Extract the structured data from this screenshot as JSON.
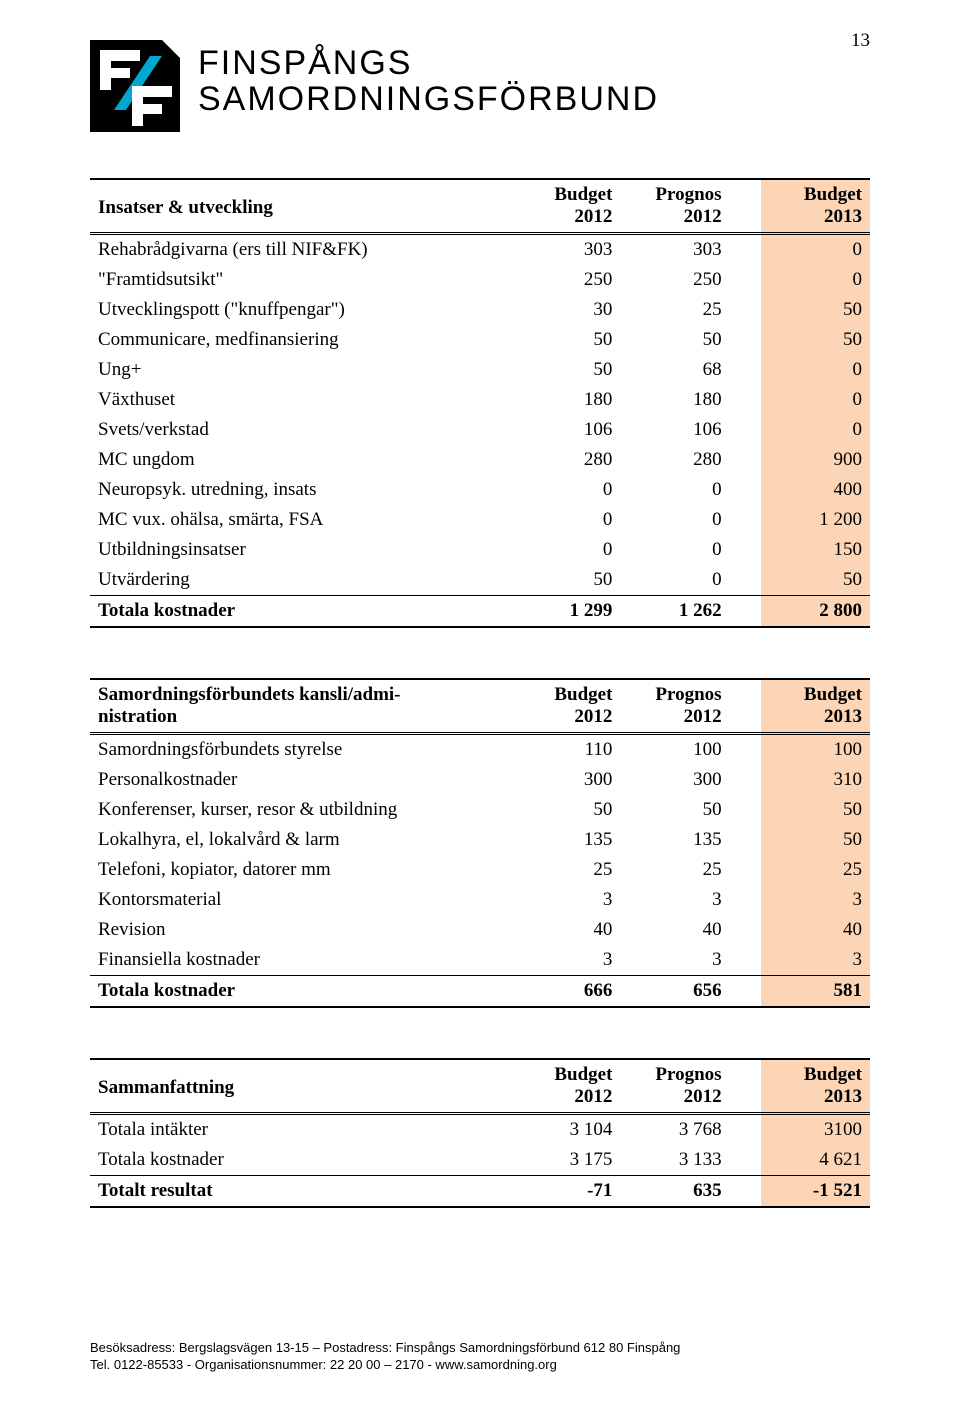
{
  "page_number": "13",
  "org": {
    "line1": "FINSPÅNGS",
    "line2": "SAMORDNINGSFÖRBUND"
  },
  "logo": {
    "bg": "#000000",
    "accent": "#00a7cf"
  },
  "columns": {
    "budget_2012_top": "Budget",
    "budget_2012_bot": "2012",
    "prognos_2012_top": "Prognos",
    "prognos_2012_bot": "2012",
    "budget_2013_top": "Budget",
    "budget_2013_bot": "2013"
  },
  "table1": {
    "title": "Insatser & utveckling",
    "rows": [
      {
        "label": "Rehabrådgivarna (ers till NIF&FK)",
        "b12": "303",
        "p12": "303",
        "b13": "0"
      },
      {
        "label": "\"Framtidsutsikt\"",
        "b12": "250",
        "p12": "250",
        "b13": "0"
      },
      {
        "label": "Utvecklingspott (\"knuffpengar\")",
        "b12": "30",
        "p12": "25",
        "b13": "50"
      },
      {
        "label": "Communicare, medfinansiering",
        "b12": "50",
        "p12": "50",
        "b13": "50"
      },
      {
        "label": "Ung+",
        "b12": "50",
        "p12": "68",
        "b13": "0"
      },
      {
        "label": "Växthuset",
        "b12": "180",
        "p12": "180",
        "b13": "0"
      },
      {
        "label": "Svets/verkstad",
        "b12": "106",
        "p12": "106",
        "b13": "0"
      },
      {
        "label": "MC ungdom",
        "b12": "280",
        "p12": "280",
        "b13": "900"
      },
      {
        "label": "Neuropsyk. utredning, insats",
        "b12": "0",
        "p12": "0",
        "b13": "400"
      },
      {
        "label": "MC vux. ohälsa, smärta, FSA",
        "b12": "0",
        "p12": "0",
        "b13": "1 200"
      },
      {
        "label": "Utbildningsinsatser",
        "b12": "0",
        "p12": "0",
        "b13": "150"
      },
      {
        "label": "Utvärdering",
        "b12": "50",
        "p12": "0",
        "b13": "50"
      }
    ],
    "total": {
      "label": "Totala kostnader",
      "b12": "1 299",
      "p12": "1 262",
      "b13": "2 800"
    }
  },
  "table2": {
    "title_l1": "Samordningsförbundets kansli/admi-",
    "title_l2": "nistration",
    "rows": [
      {
        "label": "Samordningsförbundets styrelse",
        "b12": "110",
        "p12": "100",
        "b13": "100"
      },
      {
        "label": "Personalkostnader",
        "b12": "300",
        "p12": "300",
        "b13": "310"
      },
      {
        "label": "Konferenser, kurser, resor & utbildning",
        "b12": "50",
        "p12": "50",
        "b13": "50"
      },
      {
        "label": "Lokalhyra, el, lokalvård & larm",
        "b12": "135",
        "p12": "135",
        "b13": "50"
      },
      {
        "label": "Telefoni, kopiator, datorer mm",
        "b12": "25",
        "p12": "25",
        "b13": "25"
      },
      {
        "label": "Kontorsmaterial",
        "b12": "3",
        "p12": "3",
        "b13": "3"
      },
      {
        "label": "Revision",
        "b12": "40",
        "p12": "40",
        "b13": "40"
      },
      {
        "label": "Finansiella kostnader",
        "b12": "3",
        "p12": "3",
        "b13": "3"
      }
    ],
    "total": {
      "label": "Totala kostnader",
      "b12": "666",
      "p12": "656",
      "b13": "581"
    }
  },
  "table3": {
    "title": "Sammanfattning",
    "rows": [
      {
        "label": "Totala intäkter",
        "b12": "3 104",
        "p12": "3 768",
        "b13": "3100"
      },
      {
        "label": "Totala kostnader",
        "b12": "3 175",
        "p12": "3 133",
        "b13": "4 621"
      }
    ],
    "total": {
      "label": "Totalt resultat",
      "b12": "-71",
      "p12": "635",
      "b13": "-1 521"
    }
  },
  "footer": {
    "line1": "Besöksadress: Bergslagsvägen 13-15  –  Postadress: Finspångs Samordningsförbund 612 80 Finspång",
    "line2": "Tel. 0122-85533  -  Organisationsnummer: 22 20 00 – 2170   -   www.samordning.org"
  },
  "colors": {
    "highlight": "#fbd5b5",
    "text": "#000000",
    "bg": "#ffffff"
  }
}
